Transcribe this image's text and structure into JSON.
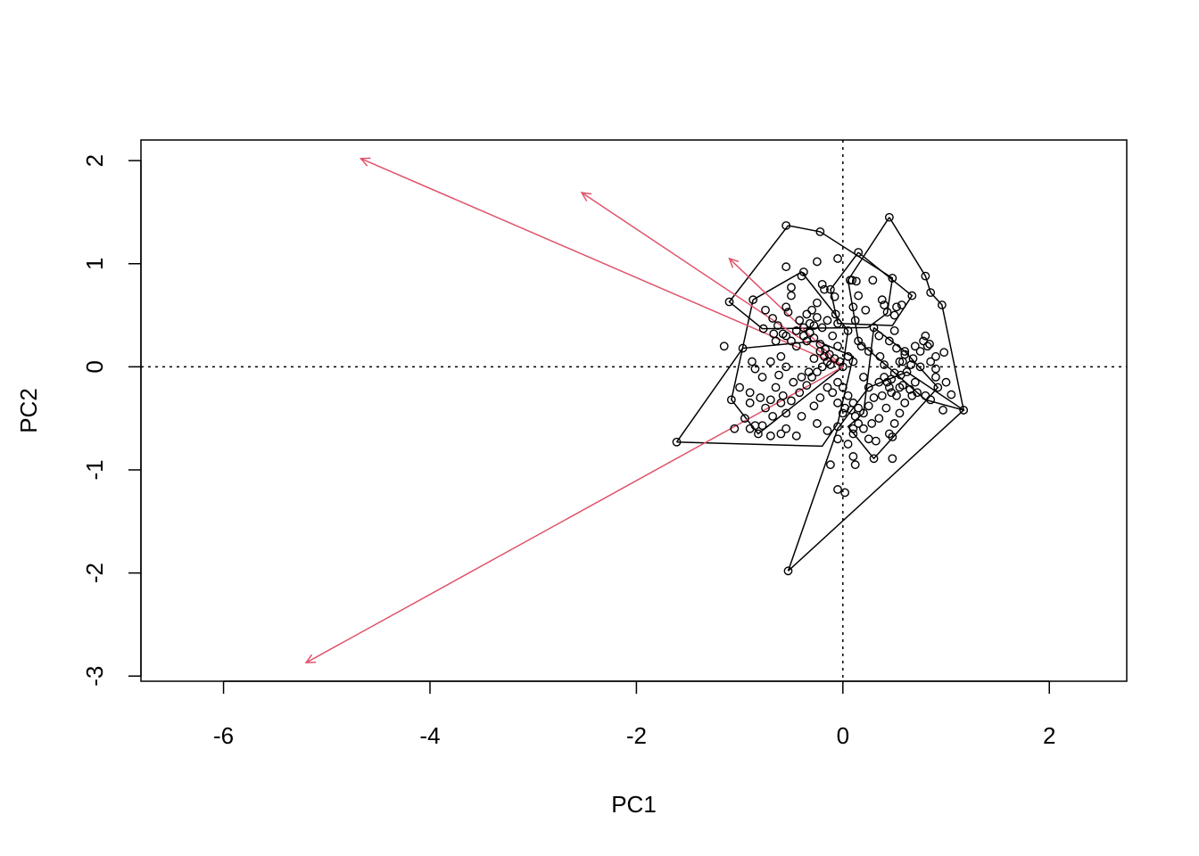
{
  "chart_data": {
    "type": "scatter",
    "title": "",
    "xlabel": "PC1",
    "ylabel": "PC2",
    "xlim": [
      -6.8,
      2.75
    ],
    "ylim": [
      -3.05,
      2.2
    ],
    "x_ticks": [
      -6,
      -4,
      -2,
      0,
      2
    ],
    "y_ticks": [
      -3,
      -2,
      -1,
      0,
      1,
      2
    ],
    "reference_lines": {
      "x": 0,
      "y": 0,
      "style": "dotted"
    },
    "colors": {
      "points": "#000000",
      "hulls": "#000000",
      "arrows": "#DF536B",
      "reference": "#000000"
    },
    "points": [
      [
        -0.55,
        1.37
      ],
      [
        -0.22,
        1.31
      ],
      [
        0.45,
        1.45
      ],
      [
        0.15,
        1.11
      ],
      [
        -0.05,
        1.05
      ],
      [
        -0.25,
        1.02
      ],
      [
        -0.55,
        0.97
      ],
      [
        -0.38,
        0.92
      ],
      [
        -0.4,
        0.88
      ],
      [
        -0.12,
        0.75
      ],
      [
        0.8,
        0.88
      ],
      [
        0.85,
        0.72
      ],
      [
        0.96,
        0.6
      ],
      [
        0.67,
        0.69
      ],
      [
        0.07,
        0.84
      ],
      [
        0.09,
        0.84
      ],
      [
        0.13,
        0.83
      ],
      [
        0.29,
        0.84
      ],
      [
        0.48,
        0.86
      ],
      [
        -0.5,
        0.77
      ],
      [
        -0.5,
        0.69
      ],
      [
        -0.2,
        0.8
      ],
      [
        -0.18,
        0.75
      ],
      [
        -0.08,
        0.68
      ],
      [
        0.15,
        0.69
      ],
      [
        0.38,
        0.65
      ],
      [
        0.5,
        0.5
      ],
      [
        0.5,
        0.35
      ],
      [
        -0.25,
        0.62
      ],
      [
        -0.3,
        0.55
      ],
      [
        -0.35,
        0.51
      ],
      [
        -0.07,
        0.51
      ],
      [
        0.1,
        0.58
      ],
      [
        -0.55,
        0.58
      ],
      [
        -0.53,
        0.53
      ],
      [
        -0.75,
        0.55
      ],
      [
        -0.87,
        0.65
      ],
      [
        -1.1,
        0.63
      ],
      [
        -0.68,
        0.47
      ],
      [
        -0.63,
        0.4
      ],
      [
        -0.77,
        0.37
      ],
      [
        -0.67,
        0.32
      ],
      [
        -0.55,
        0.3
      ],
      [
        -0.5,
        0.25
      ],
      [
        -0.45,
        0.2
      ],
      [
        -0.38,
        0.3
      ],
      [
        -0.32,
        0.33
      ],
      [
        -0.28,
        0.28
      ],
      [
        -0.22,
        0.22
      ],
      [
        -0.17,
        0.17
      ],
      [
        -0.13,
        0.12
      ],
      [
        -0.08,
        0.08
      ],
      [
        -0.03,
        0.05
      ],
      [
        0.0,
        0.0
      ],
      [
        -0.35,
        0.25
      ],
      [
        -0.42,
        0.45
      ],
      [
        -0.28,
        0.4
      ],
      [
        -0.2,
        0.38
      ],
      [
        -0.1,
        0.3
      ],
      [
        -0.05,
        0.2
      ],
      [
        0.05,
        0.35
      ],
      [
        0.15,
        0.25
      ],
      [
        0.25,
        0.15
      ],
      [
        0.36,
        0.1
      ],
      [
        0.4,
        0.02
      ],
      [
        0.55,
        0.05
      ],
      [
        0.6,
        0.12
      ],
      [
        0.7,
        0.2
      ],
      [
        0.78,
        0.25
      ],
      [
        0.82,
        0.2
      ],
      [
        0.9,
        0.1
      ],
      [
        0.98,
        0.14
      ],
      [
        0.9,
        -0.02
      ],
      [
        1.0,
        -0.15
      ],
      [
        1.05,
        -0.27
      ],
      [
        0.97,
        -0.42
      ],
      [
        1.17,
        -0.42
      ],
      [
        0.8,
        0.3
      ],
      [
        0.84,
        0.22
      ],
      [
        0.75,
        0.0
      ],
      [
        0.7,
        -0.15
      ],
      [
        0.67,
        -0.28
      ],
      [
        0.6,
        -0.35
      ],
      [
        0.55,
        -0.45
      ],
      [
        0.5,
        -0.55
      ],
      [
        0.45,
        -0.65
      ],
      [
        0.48,
        -0.68
      ],
      [
        0.48,
        -0.89
      ],
      [
        0.32,
        -0.72
      ],
      [
        0.3,
        -0.89
      ],
      [
        0.1,
        -0.87
      ],
      [
        0.12,
        -0.95
      ],
      [
        -0.12,
        -0.95
      ],
      [
        0.05,
        -0.75
      ],
      [
        -0.05,
        -0.7
      ],
      [
        -0.15,
        -0.62
      ],
      [
        -0.25,
        -0.55
      ],
      [
        -0.4,
        -0.48
      ],
      [
        -0.55,
        -0.45
      ],
      [
        -0.6,
        -0.35
      ],
      [
        -0.7,
        -0.32
      ],
      [
        -0.8,
        -0.3
      ],
      [
        -0.9,
        -0.25
      ],
      [
        -1.0,
        -0.2
      ],
      [
        -1.08,
        -0.32
      ],
      [
        -1.05,
        -0.6
      ],
      [
        -0.9,
        -0.6
      ],
      [
        -0.85,
        -0.57
      ],
      [
        -0.78,
        -0.57
      ],
      [
        -0.82,
        -0.65
      ],
      [
        -0.7,
        -0.67
      ],
      [
        -0.95,
        -0.5
      ],
      [
        -0.55,
        -0.6
      ],
      [
        -0.45,
        -0.67
      ],
      [
        -1.61,
        -0.73
      ],
      [
        -0.53,
        -1.98
      ],
      [
        -0.05,
        -1.19
      ],
      [
        0.02,
        -1.22
      ],
      [
        0.1,
        -0.6
      ],
      [
        0.15,
        -0.55
      ],
      [
        0.2,
        -0.45
      ],
      [
        0.12,
        -0.48
      ],
      [
        0.25,
        -0.38
      ],
      [
        0.38,
        -0.28
      ],
      [
        0.45,
        -0.2
      ],
      [
        0.47,
        -0.12
      ],
      [
        0.5,
        -0.06
      ],
      [
        0.56,
        -0.08
      ],
      [
        0.62,
        -0.05
      ],
      [
        0.66,
        0.02
      ],
      [
        0.6,
        0.15
      ],
      [
        0.57,
        0.6
      ],
      [
        0.43,
        0.53
      ],
      [
        0.4,
        0.6
      ],
      [
        0.52,
        0.58
      ],
      [
        -1.15,
        0.2
      ],
      [
        -0.97,
        0.18
      ],
      [
        -0.88,
        0.05
      ],
      [
        -0.85,
        -0.02
      ],
      [
        -0.78,
        -0.1
      ],
      [
        -0.65,
        -0.2
      ],
      [
        -0.58,
        -0.28
      ],
      [
        -0.5,
        -0.33
      ],
      [
        -0.42,
        -0.25
      ],
      [
        -0.35,
        -0.18
      ],
      [
        -0.3,
        -0.1
      ],
      [
        -0.25,
        -0.05
      ],
      [
        -0.2,
        0.0
      ],
      [
        -0.15,
        0.05
      ],
      [
        -0.12,
        0.02
      ],
      [
        -0.6,
        0.1
      ],
      [
        -0.7,
        0.05
      ],
      [
        -0.55,
        0.0
      ],
      [
        -0.62,
        -0.08
      ],
      [
        -0.48,
        -0.15
      ],
      [
        -0.4,
        -0.1
      ],
      [
        -0.33,
        -0.05
      ],
      [
        -0.28,
        0.08
      ],
      [
        -0.22,
        0.15
      ],
      [
        -0.18,
        0.1
      ],
      [
        0.05,
        0.1
      ],
      [
        0.1,
        0.05
      ],
      [
        0.18,
        0.2
      ],
      [
        0.2,
        -0.1
      ],
      [
        0.25,
        -0.2
      ],
      [
        0.3,
        -0.3
      ],
      [
        0.35,
        -0.15
      ],
      [
        0.4,
        -0.1
      ],
      [
        0.43,
        -0.15
      ],
      [
        0.47,
        -0.25
      ],
      [
        0.52,
        -0.28
      ],
      [
        0.55,
        -0.2
      ],
      [
        0.58,
        -0.18
      ],
      [
        0.65,
        -0.22
      ],
      [
        0.72,
        -0.25
      ],
      [
        0.8,
        -0.28
      ],
      [
        0.85,
        -0.32
      ],
      [
        0.1,
        -0.35
      ],
      [
        0.05,
        -0.28
      ],
      [
        0.0,
        -0.2
      ],
      [
        -0.05,
        -0.15
      ],
      [
        0.02,
        -0.4
      ],
      [
        0.08,
        -0.42
      ],
      [
        0.15,
        -0.4
      ],
      [
        0.2,
        -0.6
      ],
      [
        0.28,
        -0.55
      ],
      [
        0.35,
        -0.5
      ],
      [
        0.42,
        -0.4
      ],
      [
        -0.28,
        -0.38
      ],
      [
        -0.22,
        -0.3
      ],
      [
        -0.15,
        -0.2
      ],
      [
        -0.1,
        -0.25
      ],
      [
        -0.05,
        -0.35
      ],
      [
        0.0,
        -0.45
      ],
      [
        -0.65,
        0.25
      ],
      [
        -0.58,
        0.32
      ],
      [
        -0.45,
        0.35
      ],
      [
        -0.38,
        0.38
      ],
      [
        -0.32,
        0.42
      ],
      [
        -0.25,
        0.48
      ],
      [
        -0.15,
        0.45
      ],
      [
        -0.05,
        0.42
      ],
      [
        0.12,
        0.45
      ],
      [
        0.22,
        0.55
      ],
      [
        0.3,
        0.38
      ],
      [
        0.35,
        0.3
      ],
      [
        0.45,
        0.25
      ],
      [
        0.52,
        0.18
      ],
      [
        0.58,
        0.05
      ],
      [
        0.68,
        0.08
      ],
      [
        0.75,
        0.15
      ],
      [
        0.85,
        0.05
      ],
      [
        0.9,
        -0.1
      ],
      [
        0.92,
        -0.2
      ],
      [
        -0.6,
        -0.65
      ],
      [
        -0.75,
        -0.4
      ],
      [
        -0.68,
        -0.48
      ],
      [
        -0.9,
        -0.35
      ],
      [
        -0.05,
        -0.58
      ],
      [
        0.1,
        -0.65
      ],
      [
        0.25,
        -0.7
      ]
    ],
    "hulls": [
      [
        [
          -0.53,
          1.37
        ],
        [
          -0.22,
          1.31
        ],
        [
          0.48,
          0.86
        ],
        [
          0.43,
          0.52
        ],
        [
          0.24,
          0.38
        ],
        [
          -0.78,
          0.37
        ],
        [
          -1.1,
          0.63
        ],
        [
          -0.53,
          1.37
        ]
      ],
      [
        [
          0.45,
          1.45
        ],
        [
          0.8,
          0.88
        ],
        [
          0.85,
          0.72
        ],
        [
          0.96,
          0.6
        ],
        [
          1.17,
          -0.42
        ],
        [
          0.8,
          -0.32
        ],
        [
          0.15,
          0.25
        ],
        [
          0.05,
          0.84
        ],
        [
          0.45,
          1.45
        ]
      ],
      [
        [
          -1.61,
          -0.73
        ],
        [
          -0.2,
          -0.77
        ],
        [
          -0.05,
          -0.55
        ],
        [
          0.1,
          0.1
        ],
        [
          -0.25,
          0.25
        ],
        [
          -0.97,
          0.18
        ],
        [
          -1.61,
          -0.73
        ]
      ],
      [
        [
          -0.53,
          -1.98
        ],
        [
          1.17,
          -0.42
        ],
        [
          0.62,
          -0.05
        ],
        [
          0.25,
          -0.2
        ],
        [
          -0.05,
          -0.6
        ],
        [
          -0.53,
          -1.98
        ]
      ],
      [
        [
          0.15,
          1.11
        ],
        [
          0.67,
          0.69
        ],
        [
          0.48,
          0.4
        ],
        [
          -0.05,
          0.42
        ],
        [
          -0.12,
          0.75
        ],
        [
          0.15,
          1.11
        ]
      ],
      [
        [
          -0.87,
          0.65
        ],
        [
          -0.4,
          0.92
        ],
        [
          0.05,
          0.35
        ],
        [
          0.0,
          0.0
        ],
        [
          -0.82,
          -0.65
        ],
        [
          -1.08,
          -0.32
        ],
        [
          -0.87,
          0.65
        ]
      ],
      [
        [
          0.3,
          0.38
        ],
        [
          0.6,
          0.15
        ],
        [
          0.92,
          -0.2
        ],
        [
          0.3,
          -0.89
        ],
        [
          0.05,
          -0.58
        ],
        [
          0.2,
          -0.45
        ],
        [
          0.3,
          0.38
        ]
      ]
    ],
    "arrows": [
      [
        -4.67,
        2.02
      ],
      [
        -2.53,
        1.69
      ],
      [
        -1.1,
        1.05
      ],
      [
        -5.2,
        -2.87
      ]
    ]
  }
}
